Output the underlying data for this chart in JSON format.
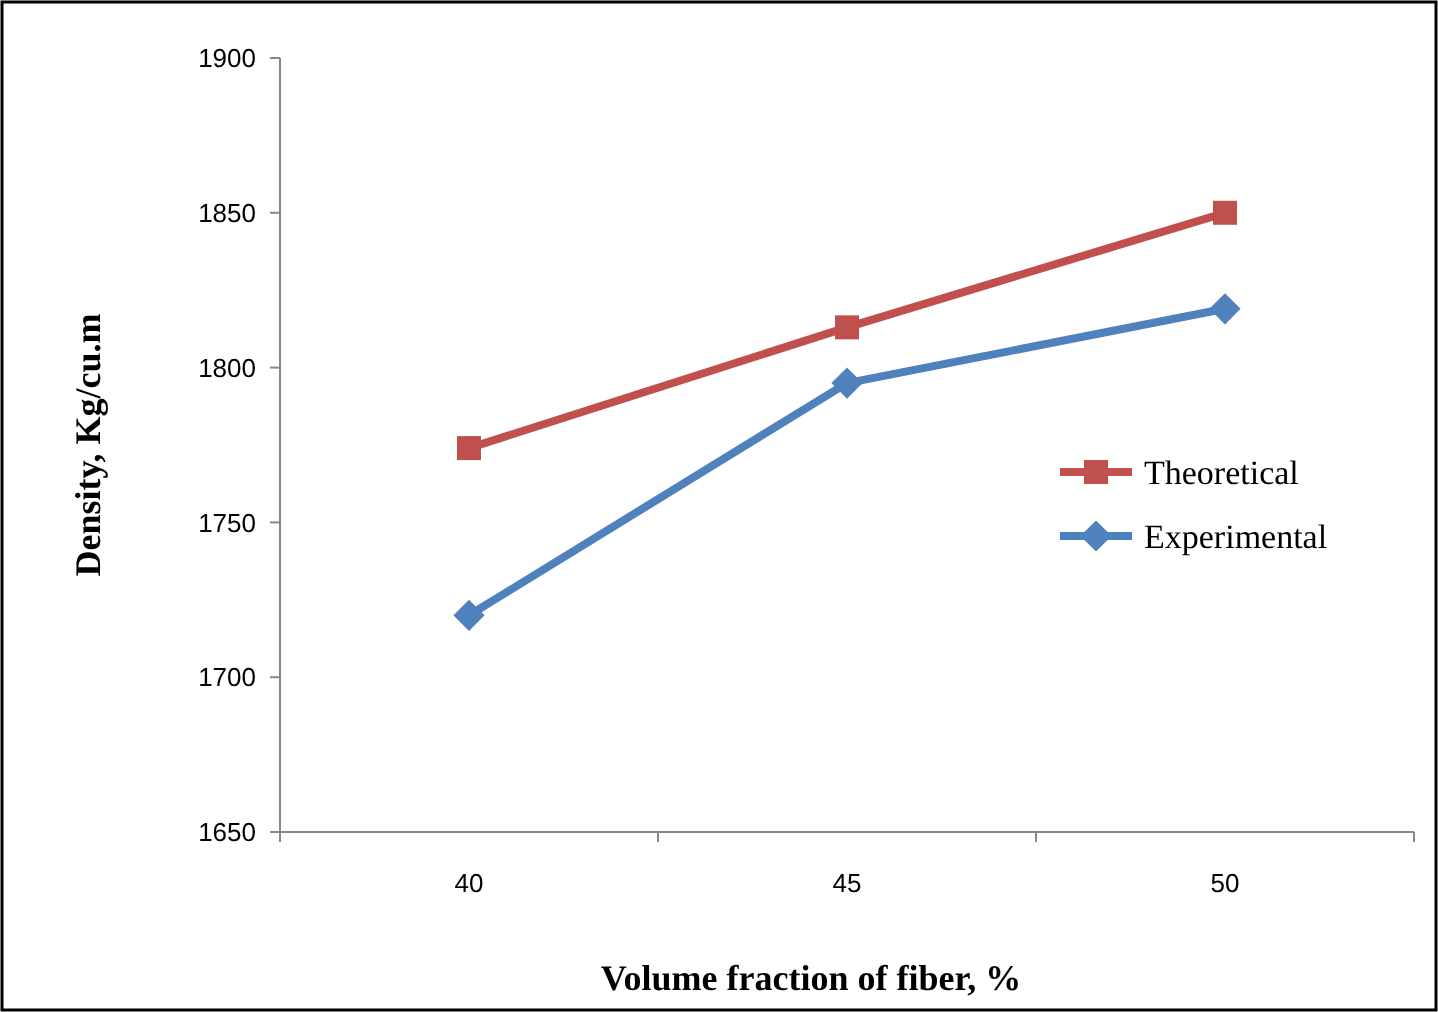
{
  "chart_data": {
    "type": "line",
    "xlabel": "Volume fraction of fiber, %",
    "ylabel": "Density, Kg/cu.m",
    "categories": [
      "40",
      "45",
      "50"
    ],
    "ylim": [
      1650,
      1900
    ],
    "yticks": [
      1650,
      1700,
      1750,
      1800,
      1850,
      1900
    ],
    "grid": false,
    "legend": "right",
    "line_style": "solid",
    "series": [
      {
        "name": "Theoretical",
        "color": "#c0504d",
        "marker": "square",
        "values": [
          1774,
          1813,
          1850
        ]
      },
      {
        "name": "Experimental",
        "color": "#4f81bd",
        "marker": "diamond",
        "values": [
          1720,
          1795,
          1819
        ]
      }
    ]
  }
}
